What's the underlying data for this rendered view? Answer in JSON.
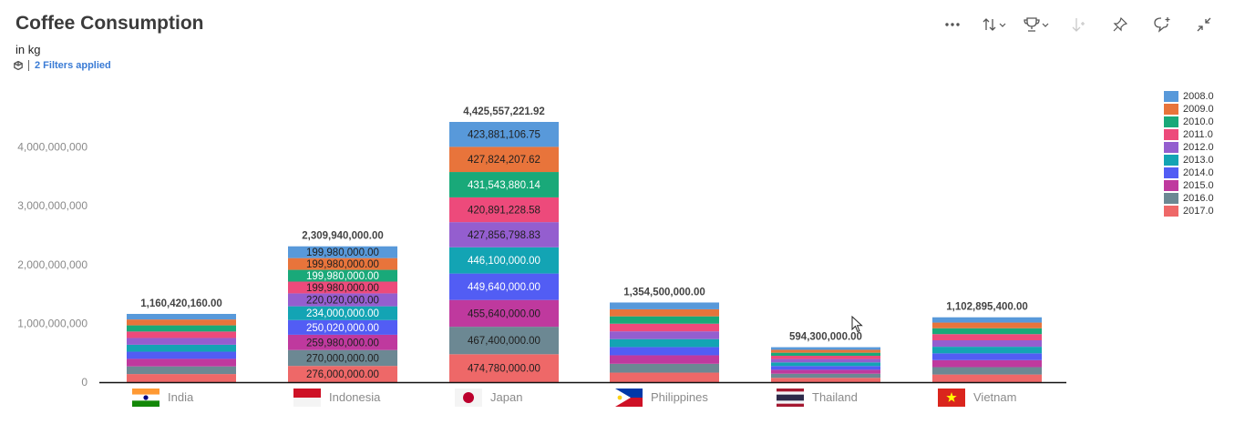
{
  "header": {
    "title": "Coffee Consumption",
    "subtitle": "in kg",
    "filters_label": "2 Filters applied"
  },
  "toolbar": {
    "items": [
      {
        "name": "more-options-button",
        "icon": "more-icon"
      },
      {
        "name": "sort-button",
        "icon": "sort-icon"
      },
      {
        "name": "ranking-button",
        "icon": "trophy-icon"
      },
      {
        "name": "drill-button",
        "icon": "drill-icon",
        "disabled": true
      },
      {
        "name": "pin-button",
        "icon": "pin-icon"
      },
      {
        "name": "comment-button",
        "icon": "comment-icon"
      },
      {
        "name": "collapse-button",
        "icon": "collapse-icon"
      }
    ]
  },
  "colors": {
    "2008.0": "#5899da",
    "2009.0": "#e8743b",
    "2010.0": "#19a979",
    "2011.0": "#ed4a7b",
    "2012.0": "#945ecf",
    "2013.0": "#13a4b4",
    "2014.0": "#525df4",
    "2015.0": "#bf399e",
    "2016.0": "#6c8893",
    "2017.0": "#ee6868"
  },
  "chart_data": {
    "type": "bar",
    "stacked": true,
    "title": "Coffee Consumption",
    "subtitle": "in kg",
    "categories": [
      "India",
      "Indonesia",
      "Japan",
      "Philippines",
      "Thailand",
      "Vietnam"
    ],
    "flags": [
      "india",
      "indonesia",
      "japan",
      "philippines",
      "thailand",
      "vietnam"
    ],
    "totals": [
      1160420160.0,
      2309940000.0,
      4425557221.92,
      1354500000.0,
      594300000.0,
      1102895400.0
    ],
    "total_labels": [
      "1,160,420,160.00",
      "2,309,940,000.00",
      "4,425,557,221.92",
      "1,354,500,000.00",
      "594,300,000.00",
      "1,102,895,400.00"
    ],
    "series": [
      {
        "name": "2008.0",
        "values": [
          94500000,
          199980000,
          423881106.75,
          115500000,
          44700000,
          90000000
        ],
        "labels": [
          "",
          "199,980,000.00",
          "423,881,106.75",
          "",
          "",
          ""
        ]
      },
      {
        "name": "2009.0",
        "values": [
          100000000,
          199980000,
          427824207.62,
          120000000,
          49000000,
          96000000
        ],
        "labels": [
          "",
          "199,980,000.00",
          "427,824,207.62",
          "",
          "",
          ""
        ]
      },
      {
        "name": "2010.0",
        "values": [
          105000000,
          199980000,
          431543880.14,
          125000000,
          52000000,
          100000000
        ],
        "labels": [
          "",
          "199,980,000.00",
          "431,543,880.14",
          "",
          "",
          ""
        ]
      },
      {
        "name": "2011.0",
        "values": [
          110000000,
          199980000,
          420891228.58,
          130000000,
          55000000,
          105000000
        ],
        "labels": [
          "",
          "199,980,000.00",
          "420,891,228.58",
          "",
          "",
          ""
        ]
      },
      {
        "name": "2012.0",
        "values": [
          115000000,
          220020000,
          427856798.83,
          132000000,
          58000000,
          110000000
        ],
        "labels": [
          "",
          "220,020,000.00",
          "427,856,798.83",
          "",
          "",
          ""
        ]
      },
      {
        "name": "2013.0",
        "values": [
          118000000,
          234000000,
          446100000.0,
          135000000,
          61000000,
          112000000
        ],
        "labels": [
          "",
          "234,000,000.00",
          "446,100,000.00",
          "",
          "",
          ""
        ]
      },
      {
        "name": "2014.0",
        "values": [
          122000000,
          250020000,
          449640000.0,
          140000000,
          64000000,
          115000000
        ],
        "labels": [
          "",
          "250,020,000.00",
          "449,640,000.00",
          "",
          "",
          ""
        ]
      },
      {
        "name": "2015.0",
        "values": [
          128000000,
          259980000,
          455640000.0,
          145000000,
          67000000,
          120000000
        ],
        "labels": [
          "",
          "259,980,000.00",
          "455,640,000.00",
          "",
          "",
          ""
        ]
      },
      {
        "name": "2016.0",
        "values": [
          130000000,
          270000000,
          467400000.0,
          150000000,
          70000000,
          125000000
        ],
        "labels": [
          "",
          "270,000,000.00",
          "467,400,000.00",
          "",
          "",
          ""
        ]
      },
      {
        "name": "2017.0",
        "values": [
          137920160,
          276000000,
          474780000.0,
          162000000,
          73600000,
          129895400
        ],
        "labels": [
          "",
          "276,000,000.00",
          "474,780,000.00",
          "",
          "",
          ""
        ]
      }
    ],
    "y_ticks": [
      0,
      1000000000,
      2000000000,
      3000000000,
      4000000000
    ],
    "y_tick_labels": [
      "0",
      "1,000,000,000",
      "2,000,000,000",
      "3,000,000,000",
      "4,000,000,000"
    ],
    "ylim": [
      0,
      4425557221.92
    ],
    "legend": {
      "position": "right",
      "entries": [
        "2008.0",
        "2009.0",
        "2010.0",
        "2011.0",
        "2012.0",
        "2013.0",
        "2014.0",
        "2015.0",
        "2016.0",
        "2017.0"
      ]
    },
    "grid": false
  }
}
